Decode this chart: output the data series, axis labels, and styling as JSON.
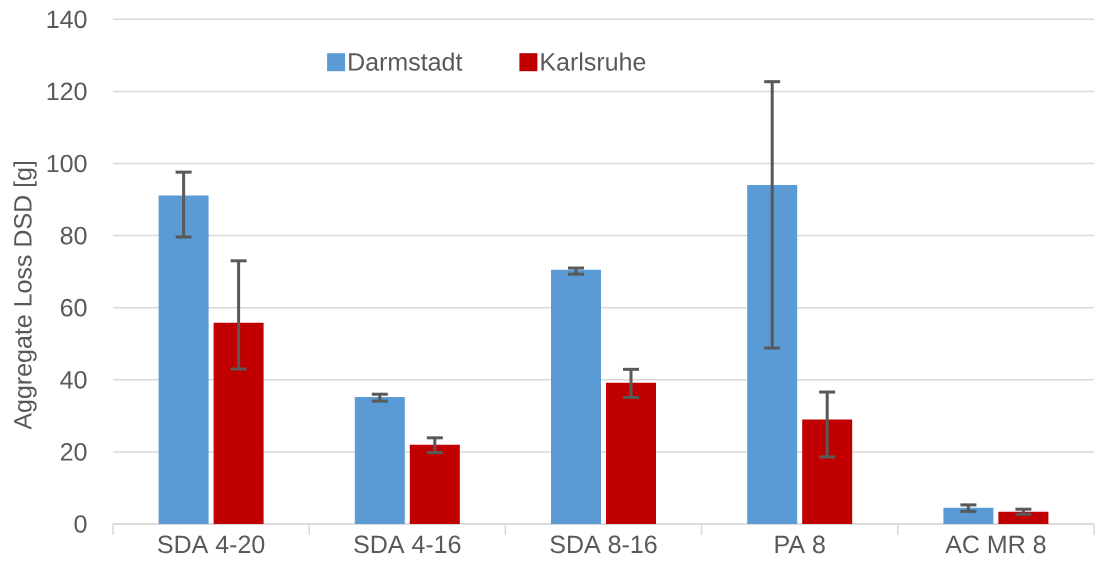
{
  "chart_data": {
    "type": "bar",
    "categories": [
      "SDA 4-20",
      "SDA 4-16",
      "SDA 8-16",
      "PA 8",
      "AC MR 8"
    ],
    "series": [
      {
        "name": "Darmstadt",
        "color": "#5b9bd5",
        "values": [
          91.1,
          35.2,
          70.5,
          94.0,
          4.5
        ],
        "errors": [
          [
            79.6,
            97.6
          ],
          [
            34.1,
            36.0
          ],
          [
            69.3,
            71.0
          ],
          [
            48.8,
            122.7
          ],
          [
            3.5,
            5.3
          ]
        ]
      },
      {
        "name": "Karlsruhe",
        "color": "#c00000",
        "values": [
          55.8,
          22.0,
          39.2,
          29.0,
          3.4
        ],
        "errors": [
          [
            43.0,
            73.0
          ],
          [
            19.8,
            23.9
          ],
          [
            35.1,
            42.9
          ],
          [
            18.6,
            36.6
          ],
          [
            2.7,
            4.1
          ]
        ]
      }
    ],
    "ylabel": "Aggregate Loss DSD [g]",
    "ylim": [
      0,
      140
    ],
    "yticks": [
      0,
      20,
      40,
      60,
      80,
      100,
      120,
      140
    ],
    "grid": "y",
    "legend": "top"
  }
}
